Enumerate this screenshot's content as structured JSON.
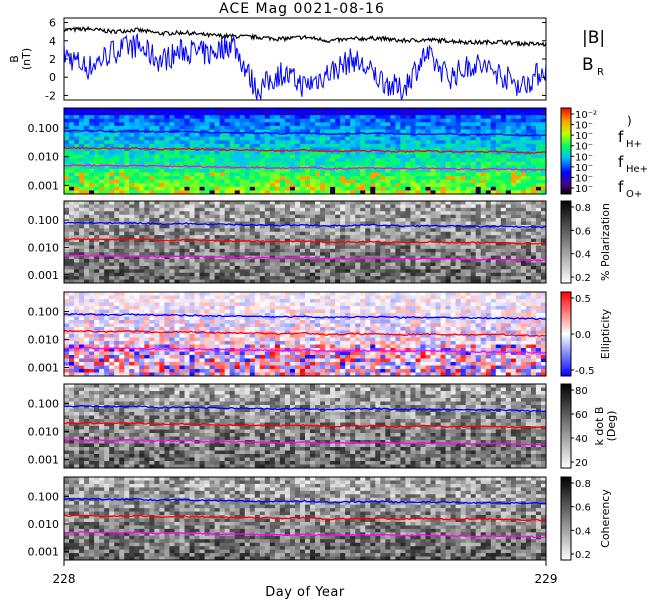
{
  "chart_data": {
    "type": "line",
    "title": "ACE Mag 0021-08-16",
    "xlabel": "Day of Year",
    "xlim": [
      228,
      229
    ],
    "xticks": [
      "228",
      "229"
    ],
    "colors": {
      "B": "#000000",
      "BR": "#0000ff",
      "fH": "#0000ff",
      "fHe": "#ff0000",
      "fO": "#ff00ff"
    },
    "panels": [
      {
        "id": "mag",
        "ylabel": "B\n(nT)",
        "ylim": [
          -2.5,
          6.5
        ],
        "yticks": [
          6,
          4,
          2,
          0,
          -2
        ],
        "legend": [
          {
            "text": "|B|",
            "color": "#000000"
          },
          {
            "text": "B",
            "sub": "R",
            "color": "#0000ff"
          }
        ],
        "series": [
          {
            "name": "|B|",
            "x": [
              228.0,
              228.05,
              228.1,
              228.15,
              228.2,
              228.25,
              228.3,
              228.35,
              228.4,
              228.45,
              228.5,
              228.55,
              228.6,
              228.65,
              228.7,
              228.75,
              228.8,
              228.85,
              228.9,
              228.95,
              229.0
            ],
            "values": [
              5.2,
              5.3,
              5.0,
              5.2,
              4.8,
              4.9,
              4.6,
              4.5,
              4.4,
              4.2,
              4.4,
              4.0,
              4.2,
              4.3,
              4.0,
              4.1,
              4.0,
              3.8,
              3.9,
              3.7,
              3.6
            ]
          },
          {
            "name": "B_R",
            "x": [
              228.0,
              228.05,
              228.1,
              228.15,
              228.2,
              228.25,
              228.3,
              228.35,
              228.4,
              228.45,
              228.5,
              228.55,
              228.6,
              228.65,
              228.7,
              228.75,
              228.8,
              228.85,
              228.9,
              228.95,
              229.0
            ],
            "values": [
              2.5,
              1.0,
              2.8,
              3.5,
              1.8,
              3.0,
              2.5,
              3.8,
              -1.5,
              0.5,
              -1.0,
              0.5,
              2.0,
              0.0,
              -1.5,
              2.5,
              0.0,
              1.5,
              0.5,
              -1.0,
              1.0
            ]
          }
        ]
      },
      {
        "id": "power",
        "cmap": "rainbow",
        "ylim": [
          0.0005,
          0.5
        ],
        "yticks": [
          "0.100",
          "0.010",
          "0.001"
        ],
        "cbar_ticks": [
          "10⁻²",
          "10⁻",
          "10⁻",
          "10⁻",
          "10⁻",
          "10⁻",
          "10⁻",
          "10⁻"
        ],
        "legend": [
          {
            "text": "f",
            "sub": "H+",
            "color": "#0000ff"
          },
          {
            "text": "f",
            "sub": "He+",
            "color": "#ff0000"
          },
          {
            "text": "f",
            "sub": "O+",
            "color": "#ff00ff"
          }
        ]
      },
      {
        "id": "polarization",
        "cmap": "gray",
        "ylim": [
          0.0005,
          0.5
        ],
        "yticks": [
          "0.100",
          "0.010",
          "0.001"
        ],
        "cbar_label": "% Polarization",
        "cbar_ticks": [
          "0.8",
          "0.6",
          "0.4",
          "0.2"
        ]
      },
      {
        "id": "ellipticity",
        "cmap": "bwr",
        "ylim": [
          0.0005,
          0.5
        ],
        "yticks": [
          "0.100",
          "0.010",
          "0.001"
        ],
        "cbar_label": "Ellipticity",
        "cbar_ticks": [
          "0.5",
          "0.0",
          "-0.5"
        ]
      },
      {
        "id": "kdotb",
        "cmap": "gray",
        "ylim": [
          0.0005,
          0.5
        ],
        "yticks": [
          "0.100",
          "0.010",
          "0.001"
        ],
        "cbar_label": "k dot B\n(Deg)",
        "cbar_ticks": [
          "80",
          "60",
          "40",
          "20"
        ]
      },
      {
        "id": "coherency",
        "cmap": "gray",
        "ylim": [
          0.0005,
          0.5
        ],
        "yticks": [
          "0.100",
          "0.010",
          "0.001"
        ],
        "cbar_label": "Coherency",
        "cbar_ticks": [
          "0.8",
          "0.6",
          "0.4",
          "0.2"
        ]
      }
    ],
    "gyrofrequency_lines": {
      "x": [
        228.0,
        228.05,
        228.1,
        228.15,
        228.2,
        228.25,
        228.3,
        228.35,
        228.4,
        228.45,
        228.5,
        228.55,
        228.6,
        228.65,
        228.7,
        228.75,
        228.8,
        228.85,
        228.9,
        228.95,
        229.0
      ],
      "fH+": [
        0.079,
        0.08,
        0.076,
        0.079,
        0.073,
        0.075,
        0.07,
        0.069,
        0.067,
        0.064,
        0.067,
        0.061,
        0.064,
        0.066,
        0.061,
        0.062,
        0.061,
        0.058,
        0.059,
        0.056,
        0.055
      ],
      "fHe+": [
        0.02,
        0.02,
        0.019,
        0.02,
        0.018,
        0.019,
        0.018,
        0.017,
        0.017,
        0.016,
        0.017,
        0.015,
        0.016,
        0.016,
        0.015,
        0.016,
        0.015,
        0.015,
        0.015,
        0.014,
        0.014
      ],
      "fO+": [
        0.0049,
        0.005,
        0.0048,
        0.0049,
        0.0046,
        0.0047,
        0.0044,
        0.0043,
        0.0042,
        0.004,
        0.0042,
        0.0038,
        0.004,
        0.0041,
        0.0038,
        0.0039,
        0.0038,
        0.0036,
        0.0037,
        0.0035,
        0.0034
      ]
    }
  }
}
